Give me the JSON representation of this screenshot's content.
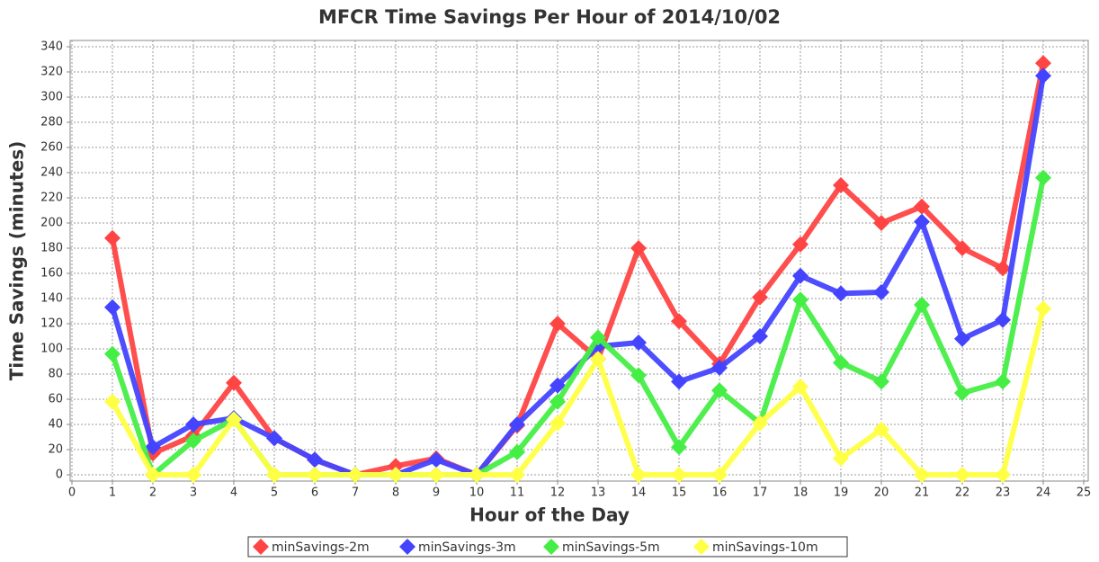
{
  "chart_data": {
    "type": "line",
    "title": "MFCR Time Savings Per Hour of 2014/10/02",
    "x_label": "Hour of the Day",
    "y_label": "Time Savings (minutes)",
    "x": [
      1,
      2,
      3,
      4,
      5,
      6,
      7,
      8,
      9,
      10,
      11,
      12,
      13,
      14,
      15,
      16,
      17,
      18,
      19,
      20,
      21,
      22,
      23,
      24
    ],
    "series": [
      {
        "name": "minSavings-2m",
        "color": "#ff4444",
        "values": [
          188,
          17,
          31,
          73,
          29,
          12,
          0,
          7,
          13,
          0,
          39,
          120,
          92,
          180,
          122,
          88,
          141,
          183,
          230,
          200,
          213,
          180,
          164,
          327
        ]
      },
      {
        "name": "minSavings-3m",
        "color": "#4444ff",
        "values": [
          133,
          22,
          40,
          45,
          29,
          12,
          0,
          0,
          12,
          0,
          40,
          71,
          102,
          105,
          74,
          85,
          110,
          158,
          144,
          145,
          201,
          108,
          123,
          317
        ]
      },
      {
        "name": "minSavings-5m",
        "color": "#44ee44",
        "values": [
          96,
          0,
          27,
          44,
          0,
          0,
          0,
          0,
          0,
          0,
          18,
          58,
          109,
          79,
          22,
          67,
          41,
          139,
          89,
          74,
          135,
          65,
          74,
          236
        ]
      },
      {
        "name": "minSavings-10m",
        "color": "#ffff44",
        "values": [
          58,
          0,
          0,
          44,
          0,
          0,
          0,
          0,
          0,
          0,
          0,
          41,
          92,
          0,
          0,
          0,
          41,
          70,
          13,
          36,
          0,
          0,
          0,
          132
        ]
      }
    ],
    "xlim": [
      0,
      25
    ],
    "xticks": [
      0,
      1,
      2,
      3,
      4,
      5,
      6,
      7,
      8,
      9,
      10,
      11,
      12,
      13,
      14,
      15,
      16,
      17,
      18,
      19,
      20,
      21,
      22,
      23,
      24,
      25
    ],
    "ylim": [
      -5,
      345
    ],
    "yticks": [
      0,
      20,
      40,
      60,
      80,
      100,
      120,
      140,
      160,
      180,
      200,
      220,
      240,
      260,
      280,
      300,
      320,
      340
    ],
    "grid": true,
    "legend": "bottom"
  }
}
